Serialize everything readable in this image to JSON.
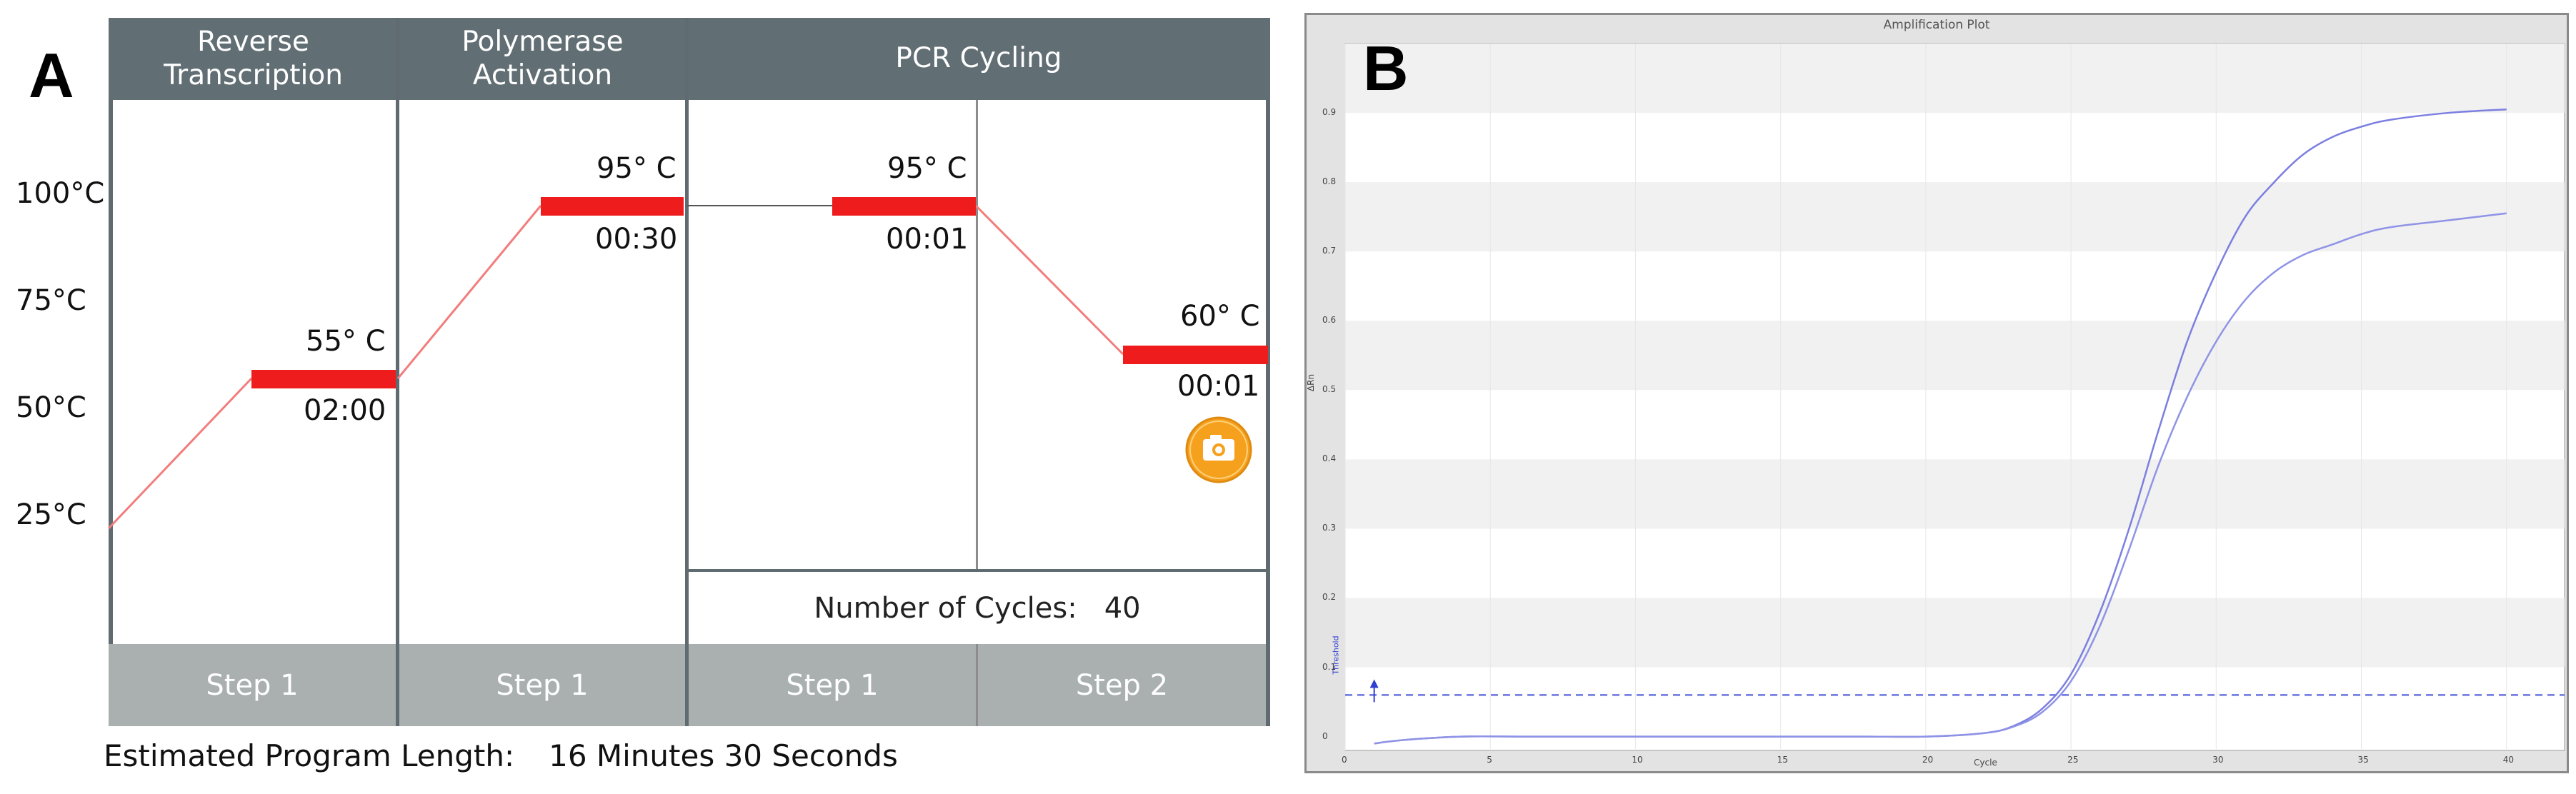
{
  "panel_a": {
    "letter": "A",
    "headers": {
      "reverse_transcription": "Reverse\nTranscription",
      "polymerase_activation": "Polymerase\nActivation",
      "pcr_cycling": "PCR Cycling"
    },
    "y_labels": [
      "100°C",
      "75°C",
      "50°C",
      "25°C"
    ],
    "stages": [
      {
        "stage": "Reverse Transcription",
        "step": "Step 1",
        "temperature": "55° C",
        "time": "02:00"
      },
      {
        "stage": "Polymerase Activation",
        "step": "Step 1",
        "temperature": "95° C",
        "time": "00:30"
      },
      {
        "stage": "PCR Cycling",
        "step": "Step 1",
        "temperature": "95° C",
        "time": "00:01"
      },
      {
        "stage": "PCR Cycling",
        "step": "Step 2",
        "temperature": "60° C",
        "time": "00:01"
      }
    ],
    "cycles_label": "Number of Cycles:",
    "cycles_value": "40",
    "estimated_label": "Estimated Program Length:",
    "estimated_value": "16 Minutes 30 Seconds",
    "camera_icon": "camera-icon",
    "colors": {
      "hold_bar": "#ee1c1c",
      "ramp": "#f27d7d",
      "header": "#616e74",
      "step_row": "#a9b0af",
      "camera": "#f5a11e"
    }
  },
  "panel_b": {
    "letter": "B",
    "title": "Amplification Plot",
    "x_axis_label": "Cycle",
    "y_axis_label": "ΔRn",
    "threshold_label": "Threshold"
  },
  "chart_data": {
    "type": "line",
    "title": "Amplification Plot",
    "xlabel": "Cycle",
    "ylabel": "ΔRn",
    "xlim": [
      0,
      42
    ],
    "ylim": [
      -0.02,
      1.0
    ],
    "x_ticks": [
      0,
      5,
      10,
      15,
      20,
      25,
      30,
      35,
      40
    ],
    "y_ticks": [
      0,
      0.1,
      0.2,
      0.3,
      0.4,
      0.5,
      0.6,
      0.7,
      0.8,
      0.9
    ],
    "threshold": 0.06,
    "grid": "horizontal bands",
    "series": [
      {
        "x": [
          1,
          2,
          4,
          6,
          8,
          10,
          12,
          14,
          16,
          18,
          20,
          22,
          23,
          24,
          25,
          26,
          27,
          28,
          29,
          30,
          31,
          32,
          33,
          34,
          35,
          36,
          38,
          40
        ],
        "values": [
          -0.01,
          -0.005,
          0.0,
          0.0,
          0.0,
          0.0,
          0.0,
          0.0,
          0.0,
          0.0,
          0.0,
          0.005,
          0.015,
          0.04,
          0.09,
          0.18,
          0.3,
          0.44,
          0.57,
          0.67,
          0.75,
          0.8,
          0.84,
          0.865,
          0.88,
          0.89,
          0.9,
          0.905
        ],
        "color": "#7b7fe0"
      },
      {
        "x": [
          1,
          2,
          4,
          6,
          8,
          10,
          12,
          14,
          16,
          18,
          20,
          22,
          23,
          24,
          25,
          26,
          27,
          28,
          29,
          30,
          31,
          32,
          33,
          34,
          35,
          36,
          38,
          40
        ],
        "values": [
          -0.01,
          -0.005,
          0.0,
          0.0,
          0.0,
          0.0,
          0.0,
          0.0,
          0.0,
          0.0,
          0.0,
          0.005,
          0.014,
          0.035,
          0.08,
          0.16,
          0.27,
          0.39,
          0.49,
          0.57,
          0.63,
          0.67,
          0.695,
          0.71,
          0.725,
          0.735,
          0.745,
          0.755
        ],
        "color": "#8f93e6"
      }
    ]
  }
}
